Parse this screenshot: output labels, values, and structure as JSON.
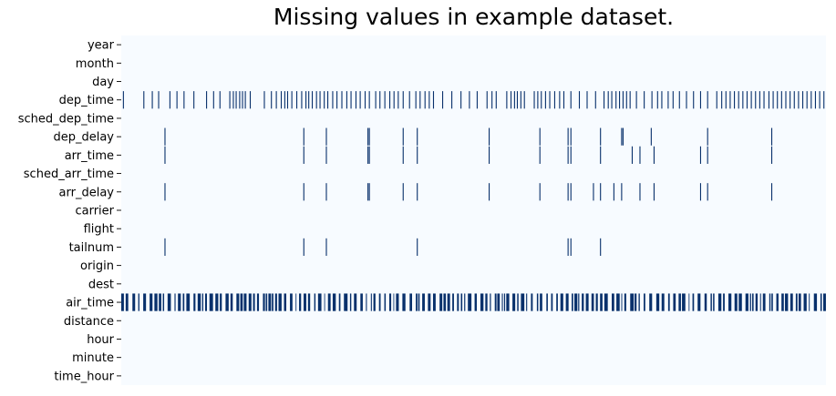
{
  "chart_data": {
    "type": "heatmap",
    "title": "Missing values in example dataset.",
    "xlabel": "",
    "ylabel": "",
    "columns": [
      "year",
      "month",
      "day",
      "dep_time",
      "sched_dep_time",
      "dep_delay",
      "arr_time",
      "sched_arr_time",
      "arr_delay",
      "carrier",
      "flight",
      "tailnum",
      "origin",
      "dest",
      "air_time",
      "distance",
      "hour",
      "minute",
      "time_hour"
    ],
    "colors": {
      "present": "#f7fbff",
      "missing": "#08306b"
    },
    "colorbar": false,
    "x_range": [
      0,
      1
    ],
    "missing_positions": {
      "year": [],
      "month": [],
      "day": [],
      "dep_time": [
        0.003,
        0.032,
        0.044,
        0.053,
        0.069,
        0.079,
        0.089,
        0.103,
        0.121,
        0.131,
        0.14,
        0.154,
        0.159,
        0.163,
        0.168,
        0.172,
        0.176,
        0.183,
        0.203,
        0.213,
        0.22,
        0.227,
        0.232,
        0.236,
        0.242,
        0.249,
        0.256,
        0.262,
        0.266,
        0.271,
        0.277,
        0.282,
        0.288,
        0.293,
        0.3,
        0.306,
        0.313,
        0.32,
        0.326,
        0.333,
        0.339,
        0.346,
        0.352,
        0.361,
        0.367,
        0.374,
        0.381,
        0.387,
        0.393,
        0.4,
        0.409,
        0.418,
        0.424,
        0.431,
        0.437,
        0.443,
        0.456,
        0.469,
        0.482,
        0.494,
        0.505,
        0.519,
        0.526,
        0.532,
        0.547,
        0.553,
        0.558,
        0.562,
        0.567,
        0.572,
        0.586,
        0.591,
        0.596,
        0.602,
        0.608,
        0.615,
        0.622,
        0.628,
        0.638,
        0.65,
        0.661,
        0.673,
        0.685,
        0.691,
        0.696,
        0.702,
        0.707,
        0.712,
        0.717,
        0.722,
        0.731,
        0.742,
        0.753,
        0.761,
        0.767,
        0.776,
        0.783,
        0.792,
        0.802,
        0.812,
        0.822,
        0.832,
        0.845,
        0.852,
        0.858,
        0.864,
        0.87,
        0.876,
        0.882,
        0.888,
        0.894,
        0.9,
        0.906,
        0.912,
        0.919,
        0.925,
        0.931,
        0.937,
        0.943,
        0.949,
        0.955,
        0.961,
        0.967,
        0.973,
        0.979,
        0.985,
        0.991,
        0.997
      ],
      "sched_dep_time": [],
      "dep_delay": [
        0.062,
        0.259,
        0.291,
        0.35,
        0.352,
        0.4,
        0.42,
        0.522,
        0.594,
        0.634,
        0.638,
        0.68,
        0.71,
        0.712,
        0.752,
        0.832,
        0.923
      ],
      "arr_time": [
        0.062,
        0.259,
        0.291,
        0.35,
        0.352,
        0.4,
        0.42,
        0.522,
        0.594,
        0.634,
        0.638,
        0.68,
        0.725,
        0.736,
        0.756,
        0.822,
        0.832,
        0.923
      ],
      "sched_arr_time": [],
      "arr_delay": [
        0.062,
        0.259,
        0.291,
        0.35,
        0.352,
        0.4,
        0.42,
        0.522,
        0.594,
        0.634,
        0.638,
        0.67,
        0.68,
        0.699,
        0.71,
        0.736,
        0.756,
        0.822,
        0.832,
        0.923
      ],
      "carrier": [],
      "flight": [],
      "tailnum": [
        0.062,
        0.259,
        0.291,
        0.42,
        0.634,
        0.638,
        0.68
      ],
      "origin": [],
      "dest": [],
      "air_time": "dense",
      "distance": [],
      "hour": [],
      "minute": [],
      "time_hour": []
    }
  }
}
